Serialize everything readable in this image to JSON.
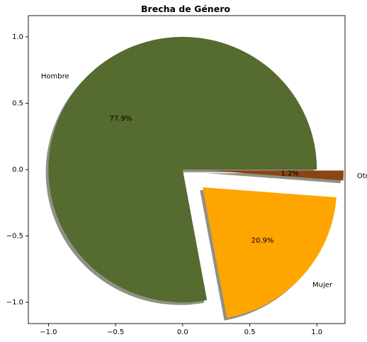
{
  "chart_data": {
    "type": "pie",
    "title": "Brecha de Género",
    "slices": [
      {
        "label": "Hombre",
        "value": 77.9,
        "pct_label": "77.9%",
        "color": "#556b2f",
        "explode": 0.0
      },
      {
        "label": "Mujer",
        "value": 20.9,
        "pct_label": "20.9%",
        "color": "#ffa500",
        "explode": 0.2
      },
      {
        "label": "Otros",
        "value": 1.2,
        "pct_label": "1.2%",
        "color": "#8b4513",
        "explode": 0.2
      }
    ],
    "shadow": true,
    "xlim": [
      -1.15,
      1.21
    ],
    "ylim": [
      -1.16,
      1.16
    ],
    "xticks": [
      -1.0,
      -0.5,
      0.0,
      0.5,
      1.0
    ],
    "xtick_labels": [
      "−1.0",
      "−0.5",
      "0.0",
      "0.5",
      "1.0"
    ],
    "yticks": [
      1.0,
      0.5,
      0.0,
      -0.5,
      -1.0
    ],
    "ytick_labels": [
      "1.0",
      "0.5",
      "0.0",
      "−0.5",
      "−1.0"
    ],
    "grid": false,
    "legend": "none"
  }
}
